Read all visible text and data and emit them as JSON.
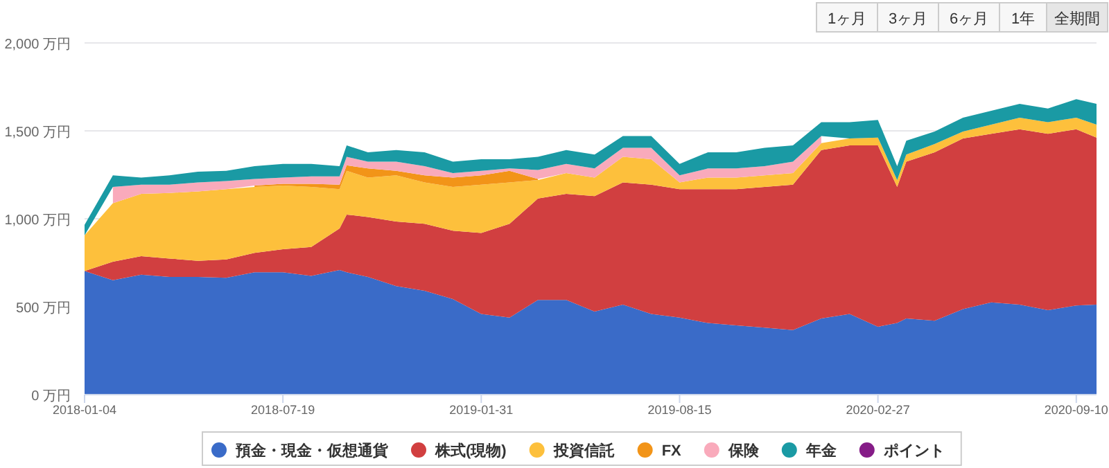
{
  "chart_data": {
    "type": "area",
    "stacked": true,
    "x": [
      "2018-01-04",
      "2018-02-01",
      "2018-03-01",
      "2018-03-29",
      "2018-04-26",
      "2018-05-24",
      "2018-06-21",
      "2018-07-19",
      "2018-08-16",
      "2018-09-13",
      "2018-09-20",
      "2018-10-11",
      "2018-11-08",
      "2018-12-06",
      "2019-01-03",
      "2019-01-31",
      "2019-02-28",
      "2019-03-28",
      "2019-04-25",
      "2019-05-23",
      "2019-06-20",
      "2019-07-18",
      "2019-08-15",
      "2019-09-12",
      "2019-10-10",
      "2019-11-07",
      "2019-12-05",
      "2020-01-02",
      "2020-01-30",
      "2020-02-27",
      "2020-03-17",
      "2020-03-26",
      "2020-04-23",
      "2020-05-21",
      "2020-06-18",
      "2020-07-16",
      "2020-08-13",
      "2020-09-10",
      "2020-09-30"
    ],
    "series": [
      {
        "name": "預金・現金・仮想通貨",
        "color": "#3a6bc8",
        "values": [
          703,
          651,
          682,
          669,
          669,
          664,
          696,
          696,
          675,
          709,
          696,
          669,
          617,
          591,
          543,
          459,
          438,
          538,
          538,
          472,
          512,
          459,
          438,
          407,
          394,
          381,
          367,
          433,
          459,
          386,
          407,
          433,
          420,
          486,
          525,
          512,
          480,
          507,
          512
        ]
      },
      {
        "name": "株式(現物)",
        "color": "#d13f40",
        "values": [
          0,
          105,
          105,
          105,
          92,
          105,
          110,
          131,
          165,
          236,
          328,
          341,
          367,
          380,
          389,
          460,
          533,
          577,
          604,
          657,
          695,
          735,
          730,
          761,
          774,
          800,
          827,
          958,
          958,
          1031,
          774,
          892,
          958,
          971,
          958,
          997,
          1003,
          1002,
          950
        ]
      },
      {
        "name": "投資信託",
        "color": "#fdc03c",
        "values": [
          203,
          333,
          355,
          373,
          394,
          399,
          375,
          362,
          341,
          223,
          249,
          224,
          263,
          236,
          249,
          275,
          236,
          105,
          118,
          105,
          145,
          145,
          39,
          66,
          66,
          66,
          66,
          39,
          40,
          45,
          39,
          40,
          47,
          39,
          52,
          66,
          66,
          66,
          73
        ]
      },
      {
        "name": "FX",
        "color": "#f29418",
        "values": [
          null,
          null,
          null,
          null,
          null,
          null,
          8,
          10,
          18,
          26,
          31,
          52,
          26,
          40,
          53,
          53,
          66,
          6,
          null,
          null,
          null,
          null,
          null,
          null,
          null,
          null,
          null,
          null,
          null,
          null,
          null,
          null,
          null,
          null,
          null,
          null,
          null,
          null,
          null
        ]
      },
      {
        "name": "保険",
        "color": "#f9aabb",
        "values": [
          null,
          92,
          52,
          47,
          52,
          47,
          37,
          35,
          42,
          47,
          48,
          39,
          52,
          52,
          26,
          26,
          13,
          52,
          52,
          52,
          52,
          65,
          40,
          52,
          52,
          52,
          65,
          40,
          null,
          null,
          null,
          null,
          null,
          null,
          null,
          null,
          null,
          null,
          null
        ]
      },
      {
        "name": "年金",
        "color": "#1a9aa4",
        "values": [
          60,
          66,
          40,
          53,
          61,
          58,
          73,
          78,
          71,
          58,
          65,
          53,
          66,
          79,
          65,
          66,
          53,
          74,
          79,
          79,
          66,
          66,
          65,
          92,
          92,
          105,
          92,
          79,
          92,
          100,
          79,
          79,
          71,
          79,
          79,
          79,
          78,
          105,
          119
        ]
      },
      {
        "name": "ポイント",
        "color": "#851c87",
        "values": [
          null,
          null,
          null,
          null,
          null,
          null,
          null,
          null,
          null,
          null,
          null,
          null,
          null,
          null,
          null,
          null,
          null,
          null,
          null,
          null,
          null,
          null,
          null,
          null,
          null,
          null,
          null,
          null,
          null,
          null,
          null,
          null,
          null,
          null,
          null,
          null,
          null,
          null,
          null
        ]
      }
    ],
    "xlim": [
      "2018-01-04",
      "2020-09-30"
    ],
    "xticks": [
      "2018-01-04",
      "2018-07-19",
      "2019-01-31",
      "2019-08-15",
      "2020-02-27",
      "2020-09-10"
    ],
    "ylim": [
      0,
      2000
    ],
    "yticks": [
      {
        "value": 0,
        "label": "0 万円"
      },
      {
        "value": 500,
        "label": "500 万円"
      },
      {
        "value": 1000,
        "label": "1,000 万円"
      },
      {
        "value": 1500,
        "label": "1,500 万円"
      },
      {
        "value": 2000,
        "label": "2,000 万円"
      }
    ],
    "grid": "y",
    "legend": "bottom",
    "annotations": [
      "1ヶ月",
      "3ヶ月",
      "6ヶ月",
      "1年",
      "全期間"
    ]
  }
}
